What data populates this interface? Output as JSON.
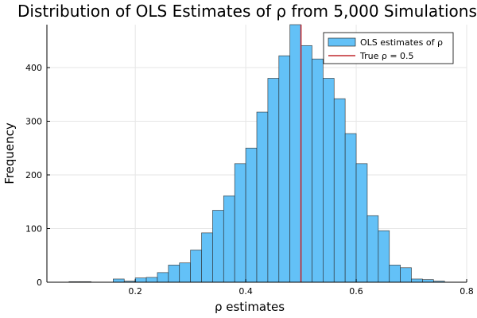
{
  "chart_data": {
    "type": "bar",
    "title": "Distribution of OLS Estimates of ρ from 5,000 Simulations",
    "xlabel": "ρ estimates",
    "ylabel": "Frequency",
    "xlim": [
      0.04,
      0.8
    ],
    "ylim": [
      0,
      480
    ],
    "xticks": [
      0.2,
      0.4,
      0.6,
      0.8
    ],
    "xtick_labels": [
      "0.2",
      "0.4",
      "0.6",
      "0.8"
    ],
    "yticks": [
      0,
      100,
      200,
      300,
      400
    ],
    "ytick_labels": [
      "0",
      "100",
      "200",
      "300",
      "400"
    ],
    "grid": true,
    "legend_position": "top-right",
    "bin_width": 0.02,
    "bins": [
      {
        "x0": 0.08,
        "x1": 0.1,
        "count": 1
      },
      {
        "x0": 0.1,
        "x1": 0.12,
        "count": 1
      },
      {
        "x0": 0.12,
        "x1": 0.14,
        "count": 0
      },
      {
        "x0": 0.14,
        "x1": 0.16,
        "count": 0
      },
      {
        "x0": 0.16,
        "x1": 0.18,
        "count": 6
      },
      {
        "x0": 0.18,
        "x1": 0.2,
        "count": 2
      },
      {
        "x0": 0.2,
        "x1": 0.22,
        "count": 8
      },
      {
        "x0": 0.22,
        "x1": 0.24,
        "count": 9
      },
      {
        "x0": 0.24,
        "x1": 0.26,
        "count": 18
      },
      {
        "x0": 0.26,
        "x1": 0.28,
        "count": 32
      },
      {
        "x0": 0.28,
        "x1": 0.3,
        "count": 36
      },
      {
        "x0": 0.3,
        "x1": 0.32,
        "count": 60
      },
      {
        "x0": 0.32,
        "x1": 0.34,
        "count": 92
      },
      {
        "x0": 0.34,
        "x1": 0.36,
        "count": 134
      },
      {
        "x0": 0.36,
        "x1": 0.38,
        "count": 161
      },
      {
        "x0": 0.38,
        "x1": 0.4,
        "count": 221
      },
      {
        "x0": 0.4,
        "x1": 0.42,
        "count": 250
      },
      {
        "x0": 0.42,
        "x1": 0.44,
        "count": 317
      },
      {
        "x0": 0.44,
        "x1": 0.46,
        "count": 380
      },
      {
        "x0": 0.46,
        "x1": 0.48,
        "count": 422
      },
      {
        "x0": 0.48,
        "x1": 0.5,
        "count": 480
      },
      {
        "x0": 0.5,
        "x1": 0.52,
        "count": 441
      },
      {
        "x0": 0.52,
        "x1": 0.54,
        "count": 416
      },
      {
        "x0": 0.54,
        "x1": 0.56,
        "count": 380
      },
      {
        "x0": 0.56,
        "x1": 0.58,
        "count": 342
      },
      {
        "x0": 0.58,
        "x1": 0.6,
        "count": 277
      },
      {
        "x0": 0.6,
        "x1": 0.62,
        "count": 221
      },
      {
        "x0": 0.62,
        "x1": 0.64,
        "count": 124
      },
      {
        "x0": 0.64,
        "x1": 0.66,
        "count": 96
      },
      {
        "x0": 0.66,
        "x1": 0.68,
        "count": 32
      },
      {
        "x0": 0.68,
        "x1": 0.7,
        "count": 27
      },
      {
        "x0": 0.7,
        "x1": 0.72,
        "count": 6
      },
      {
        "x0": 0.72,
        "x1": 0.74,
        "count": 5
      },
      {
        "x0": 0.74,
        "x1": 0.76,
        "count": 2
      }
    ],
    "vline": {
      "x": 0.5
    },
    "legend": [
      {
        "label": "OLS estimates of ρ",
        "kind": "bar"
      },
      {
        "label": "True ρ = 0.5",
        "kind": "line"
      }
    ],
    "colors": {
      "bar_fill": "#63c1f7",
      "bar_stroke": "#2a2a2a",
      "vline": "#c0282e",
      "grid": "#e6e6e6",
      "axis": "#000000"
    }
  }
}
